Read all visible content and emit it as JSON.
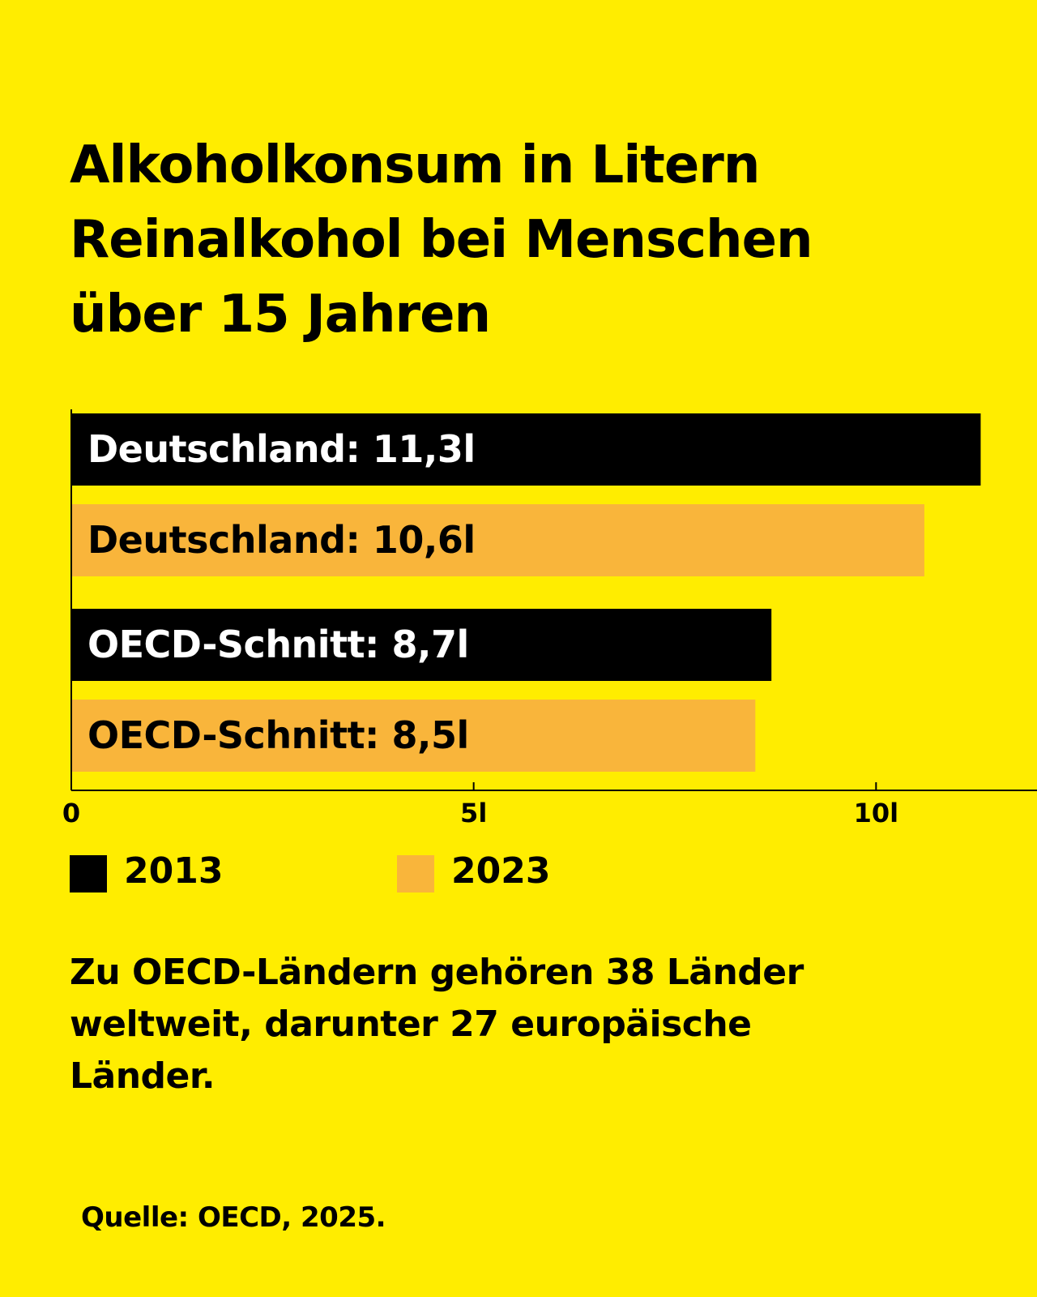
{
  "chart_data": {
    "type": "bar",
    "orientation": "horizontal",
    "title": "Alkoholkonsum in Litern Reinalkohol bei Menschen über 15 Jahren",
    "categories": [
      "Deutschland",
      "OECD-Schnitt"
    ],
    "series": [
      {
        "name": "2013",
        "color": "#000000",
        "values": [
          11.3,
          8.7
        ],
        "value_labels": [
          "Deutschland: 11,3l",
          "OECD-Schnitt: 8,7l"
        ]
      },
      {
        "name": "2023",
        "color": "#f9b53b",
        "values": [
          10.6,
          8.5
        ],
        "value_labels": [
          "Deutschland: 10,6l",
          "OECD-Schnitt: 8,5l"
        ]
      }
    ],
    "xlim": [
      0,
      12
    ],
    "xticks": [
      0,
      {
        "value": 5,
        "label": "5l"
      },
      {
        "value": 10,
        "label": "10l"
      }
    ],
    "background": "#ffed00",
    "note": "Zu OECD-Ländern gehören 38 Länder weltweit, darunter 27 europäische Länder.",
    "source": "Quelle: OECD, 2025."
  }
}
